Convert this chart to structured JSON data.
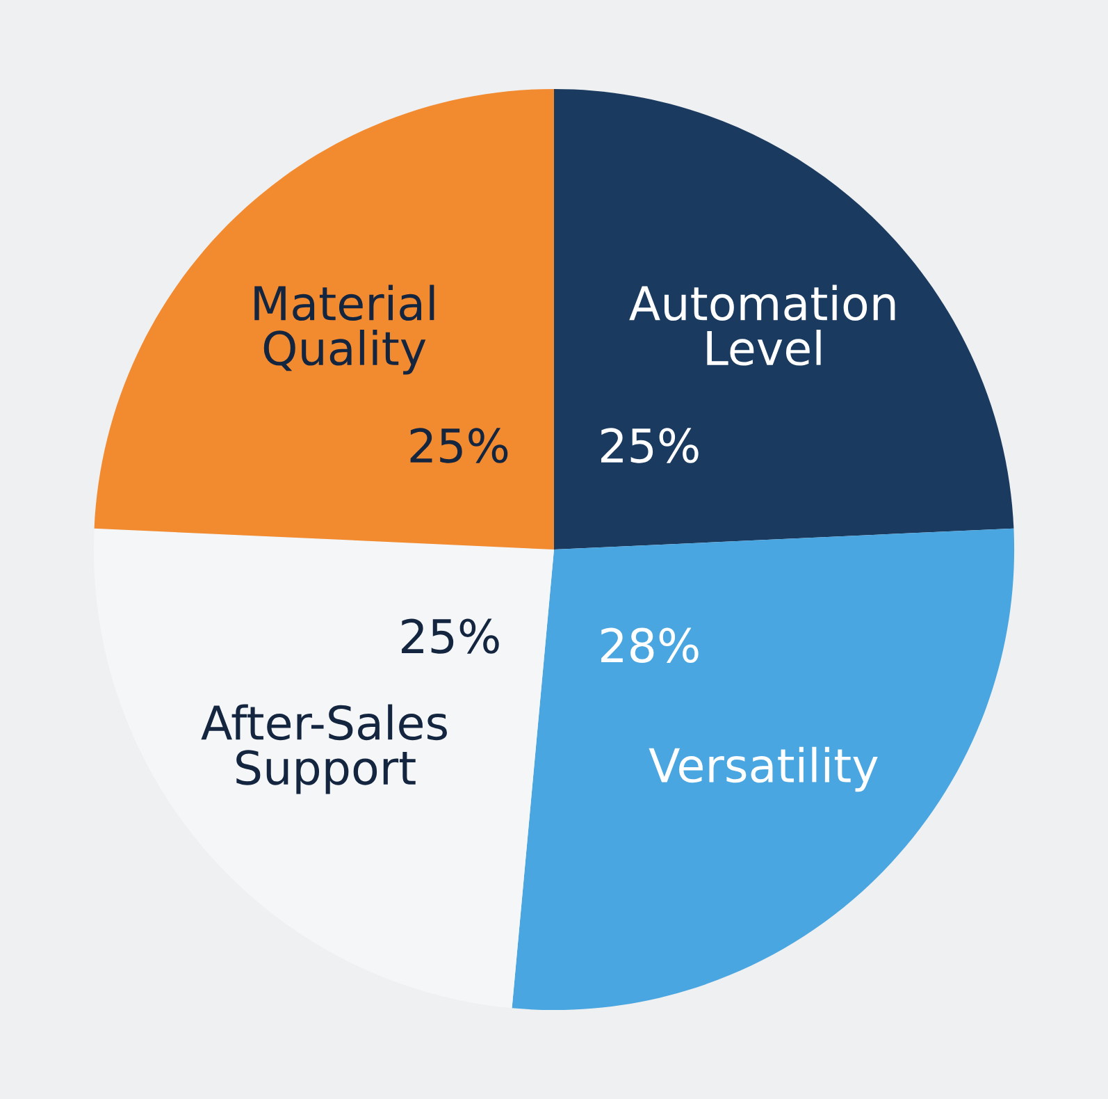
{
  "chart_data": {
    "type": "pie",
    "categories": [
      "Automation Level",
      "Versatility",
      "After-Sales Support",
      "Material Quality"
    ],
    "values": [
      25,
      28,
      25,
      25
    ],
    "value_labels": [
      "25%",
      "28%",
      "25%",
      "25%"
    ],
    "colors": [
      "#1b3a5f",
      "#4aa6e0",
      "#f5f6f7",
      "#f28a30"
    ],
    "legend": false
  }
}
